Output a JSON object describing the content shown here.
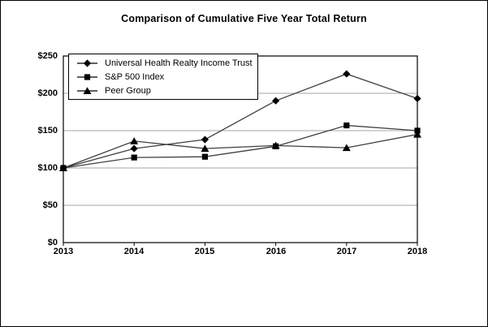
{
  "title": "Comparison of Cumulative Five Year Total Return",
  "chart_data": {
    "type": "line",
    "title": "Comparison of Cumulative Five Year Total Return",
    "categories": [
      "2013",
      "2014",
      "2015",
      "2016",
      "2017",
      "2018"
    ],
    "series": [
      {
        "name": "Universal Health Realty Income Trust",
        "marker": "diamond",
        "values": [
          100,
          126,
          138,
          190,
          226,
          193
        ]
      },
      {
        "name": "S&P 500 Index",
        "marker": "square",
        "values": [
          100,
          114,
          115,
          129,
          157,
          150
        ]
      },
      {
        "name": "Peer Group",
        "marker": "triangle",
        "values": [
          100,
          136,
          126,
          130,
          127,
          145
        ]
      }
    ],
    "xlabel": "",
    "ylabel": "",
    "ylim": [
      0,
      250
    ],
    "ytick_step": 50,
    "ytick_labels": [
      "$0",
      "$50",
      "$100",
      "$150",
      "$200",
      "$250"
    ],
    "grid": true,
    "legend_position": "top-left-inside",
    "colors": {
      "line": "#404040",
      "marker": "#000000",
      "grid": "#a6a6a6",
      "axis": "#000000",
      "background": "#ffffff"
    }
  }
}
